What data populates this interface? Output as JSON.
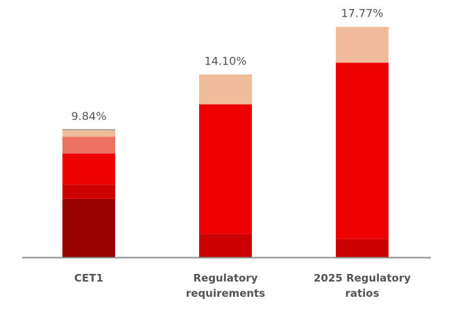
{
  "chart_data": {
    "type": "bar",
    "stacked": true,
    "grid": false,
    "legend": "none",
    "categories": [
      [
        "CET1"
      ],
      [
        "Regulatory",
        "requirements"
      ],
      [
        "2025 Regulatory",
        "ratios"
      ]
    ],
    "totals_labels": [
      "9.84%",
      "14.10%",
      "17.77%"
    ],
    "totals": [
      9.84,
      14.1,
      17.77
    ],
    "ylim": [
      0,
      20
    ],
    "segments": [
      {
        "values": [
          4.5,
          0,
          0
        ],
        "color": "#990000"
      },
      {
        "values": [
          1.1,
          1.8,
          1.4
        ],
        "color": "#cc0000"
      },
      {
        "values": [
          2.4,
          10.0,
          13.6
        ],
        "color": "#ec0000"
      },
      {
        "values": [
          1.3,
          0,
          0
        ],
        "color": "#ec7263"
      },
      {
        "values": [
          0.5,
          0,
          0
        ],
        "color": "#f0bc9c"
      },
      {
        "values": [
          0.04,
          2.3,
          2.77
        ],
        "color": "#f0bc9c"
      }
    ],
    "colors": {
      "axis": "#8a8a8a",
      "text": "#555555"
    }
  }
}
